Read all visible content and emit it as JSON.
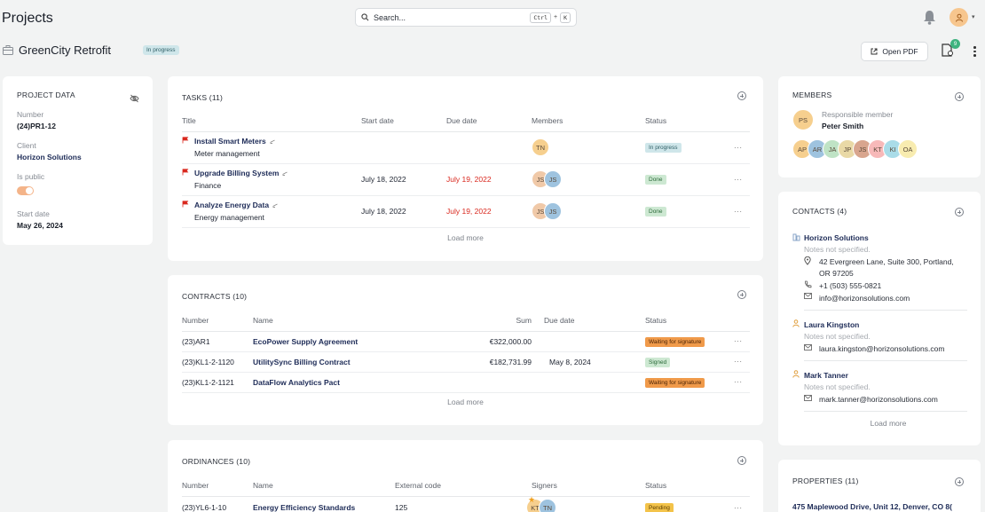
{
  "header": {
    "title": "Projects",
    "search_placeholder": "Search...",
    "kbd_ctrl": "Ctrl",
    "kbd_plus": "+",
    "kbd_k": "K"
  },
  "project": {
    "title": "GreenCity Retrofit",
    "status": "In progress",
    "open_pdf": "Open PDF",
    "doc_badge": "9"
  },
  "project_data": {
    "title": "PROJECT DATA",
    "number_label": "Number",
    "number": "(24)PR1-12",
    "client_label": "Client",
    "client": "Horizon Solutions",
    "public_label": "Is public",
    "is_public": true,
    "start_label": "Start date",
    "start": "May 26, 2024"
  },
  "tasks": {
    "title": "TASKS (11)",
    "columns": [
      "Title",
      "Start date",
      "Due date",
      "Members",
      "Status"
    ],
    "rows": [
      {
        "name": "Install Smart Meters",
        "sub": "Meter management",
        "start": "",
        "due": "",
        "members": [
          "TN"
        ],
        "status": "In progress",
        "status_kind": "progress"
      },
      {
        "name": "Upgrade Billing System",
        "sub": "Finance",
        "start": "July 18, 2022",
        "due": "July 19, 2022",
        "members": [
          "JS",
          "JS"
        ],
        "status": "Done",
        "status_kind": "done"
      },
      {
        "name": "Analyze Energy Data",
        "sub": "Energy management",
        "start": "July 18, 2022",
        "due": "July 19, 2022",
        "members": [
          "JS",
          "JS"
        ],
        "status": "Done",
        "status_kind": "done"
      }
    ],
    "load_more": "Load more"
  },
  "contracts": {
    "title": "CONTRACTS (10)",
    "columns": [
      "Number",
      "Name",
      "Sum",
      "Due date",
      "Status"
    ],
    "rows": [
      {
        "number": "(23)AR1",
        "name": "EcoPower Supply Agreement",
        "sum": "€322,000.00",
        "due": "",
        "status": "Waiting for signature",
        "status_kind": "wait"
      },
      {
        "number": "(23)KL1-2-1120",
        "name": "UtilitySync Billing Contract",
        "sum": "€182,731.99",
        "due": "May 8, 2024",
        "status": "Signed",
        "status_kind": "signed"
      },
      {
        "number": "(23)KL1-2-1121",
        "name": "DataFlow Analytics Pact",
        "sum": "",
        "due": "",
        "status": "Waiting for signature",
        "status_kind": "wait"
      }
    ],
    "load_more": "Load more"
  },
  "ordinances": {
    "title": "ORDINANCES (10)",
    "columns": [
      "Number",
      "Name",
      "External code",
      "Signers",
      "Status"
    ],
    "rows": [
      {
        "number": "(23)YL6-1-10",
        "name": "Energy Efficiency Standards",
        "code": "125",
        "signers": [
          "KT",
          "TN"
        ],
        "status": "Pending",
        "status_kind": "pending"
      }
    ]
  },
  "members": {
    "title": "MEMBERS",
    "responsible_label": "Responsible member",
    "responsible_initials": "PS",
    "responsible_name": "Peter Smith",
    "avatars": [
      {
        "initials": "AP",
        "color": "#f6cf8e"
      },
      {
        "initials": "AR",
        "color": "#9ec3df"
      },
      {
        "initials": "JA",
        "color": "#bfe3c5"
      },
      {
        "initials": "JP",
        "color": "#e9d9a6"
      },
      {
        "initials": "JS",
        "color": "#d8a58e"
      },
      {
        "initials": "KT",
        "color": "#f7b9b9"
      },
      {
        "initials": "KI",
        "color": "#a9dce8"
      },
      {
        "initials": "OA",
        "color": "#f8ecb0"
      }
    ]
  },
  "contacts": {
    "title": "CONTACTS (4)",
    "company": {
      "name": "Horizon Solutions",
      "note": "Notes not specified.",
      "address_1": "42 Evergreen Lane, Suite 300, Portland,",
      "address_2": "OR 97205",
      "phone": "+1 (503) 555-0821",
      "email": "info@horizonsolutions.com"
    },
    "people": [
      {
        "name": "Laura Kingston",
        "note": "Notes not specified.",
        "email": "laura.kingston@horizonsolutions.com"
      },
      {
        "name": "Mark Tanner",
        "note": "Notes not specified.",
        "email": "mark.tanner@horizonsolutions.com"
      }
    ],
    "load_more": "Load more"
  },
  "properties": {
    "title": "PROPERTIES (11)",
    "first": "475 Maplewood Drive, Unit 12, Denver, CO 8("
  }
}
